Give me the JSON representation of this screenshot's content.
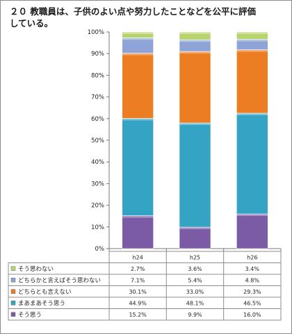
{
  "chart_data": {
    "type": "bar",
    "stacked": true,
    "title": "２０ 教職員は、子供のよい点や努力したことなどを公平に評価\nしている。",
    "categories": [
      "h24",
      "h25",
      "h26"
    ],
    "ylim": [
      0,
      100
    ],
    "yticks": [
      "0%",
      "10%",
      "20%",
      "30%",
      "40%",
      "50%",
      "60%",
      "70%",
      "80%",
      "90%",
      "100%"
    ],
    "grid": false,
    "legend": "data-table-left",
    "series": [
      {
        "name": "そう思う",
        "color": "#7b5aa6",
        "values": [
          15.2,
          9.9,
          16.0
        ],
        "labels": [
          "15.2%",
          "9.9%",
          "16.0%"
        ]
      },
      {
        "name": "まあまあそう思う",
        "color": "#34a3c4",
        "values": [
          44.9,
          48.1,
          46.5
        ],
        "labels": [
          "44.9%",
          "48.1%",
          "46.5%"
        ]
      },
      {
        "name": "どちらとも言えない",
        "color": "#ec7d22",
        "values": [
          30.1,
          33.0,
          29.3
        ],
        "labels": [
          "30.1%",
          "33.0%",
          "29.3%"
        ]
      },
      {
        "name": "どちらかと言えばそう思わない",
        "color": "#8ea4d6",
        "values": [
          7.1,
          5.4,
          4.8
        ],
        "labels": [
          "7.1%",
          "5.4%",
          "4.8%"
        ]
      },
      {
        "name": "そう思わない",
        "color": "#b7d36b",
        "values": [
          2.7,
          3.6,
          3.4
        ],
        "labels": [
          "2.7%",
          "3.6%",
          "3.4%"
        ]
      }
    ]
  }
}
